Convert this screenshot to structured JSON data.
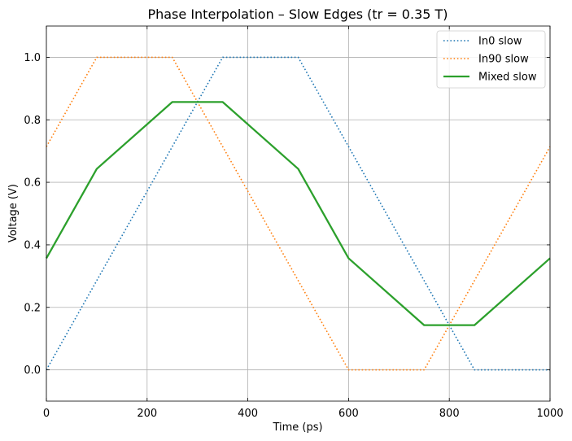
{
  "chart_data": {
    "type": "line",
    "title": "Phase Interpolation – Slow Edges (tr = 0.35 T)",
    "xlabel": "Time (ps)",
    "ylabel": "Voltage (V)",
    "xlim": [
      0,
      1000
    ],
    "ylim": [
      -0.1,
      1.1
    ],
    "xticks": [
      0,
      200,
      400,
      600,
      800,
      1000
    ],
    "yticks": [
      0.0,
      0.2,
      0.4,
      0.6,
      0.8,
      1.0
    ],
    "xtick_labels": [
      "0",
      "200",
      "400",
      "600",
      "800",
      "1000"
    ],
    "ytick_labels": [
      "0.0",
      "0.2",
      "0.4",
      "0.6",
      "0.8",
      "1.0"
    ],
    "grid": true,
    "legend_position": "top-right",
    "series": [
      {
        "name": "In0 slow",
        "color": "#1f77b4",
        "style": "dotted",
        "x": [
          0,
          350,
          500,
          850,
          1000
        ],
        "y": [
          0,
          1,
          1,
          0,
          0
        ]
      },
      {
        "name": "In90 slow",
        "color": "#ff7f0e",
        "style": "dotted",
        "x": [
          0,
          100,
          250,
          600,
          750,
          1000
        ],
        "y": [
          0.714,
          1,
          1,
          0,
          0,
          0.714
        ]
      },
      {
        "name": "Mixed slow",
        "color": "#2ca02c",
        "style": "solid",
        "x": [
          0,
          100,
          250,
          350,
          500,
          600,
          750,
          850,
          1000
        ],
        "y": [
          0.357,
          0.643,
          0.857,
          0.857,
          0.643,
          0.357,
          0.143,
          0.143,
          0.357
        ]
      }
    ]
  }
}
